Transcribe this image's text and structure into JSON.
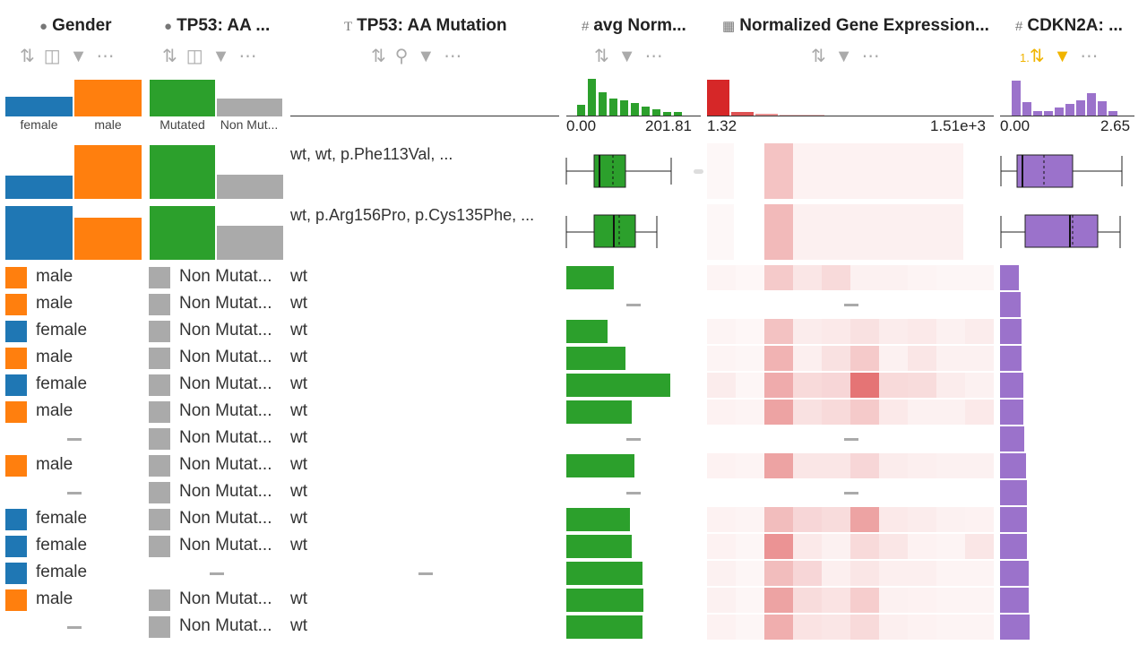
{
  "colors": {
    "female": "#1f77b4",
    "male": "#ff7f0e",
    "mutated": "#2ca02c",
    "non_mutated": "#aaaaaa",
    "avg_bar": "#2ca02c",
    "heat": "#d62728",
    "cdkn2a": "#9b72cb"
  },
  "columns": {
    "gender": {
      "title": "Gender",
      "icon": "categorical-icon",
      "hist_labels": [
        "female",
        "male"
      ]
    },
    "tp53_cat": {
      "title": "TP53: AA ...",
      "icon": "categorical-icon",
      "hist_labels": [
        "Mutated",
        "Non Mut..."
      ]
    },
    "tp53_text": {
      "title": "TP53: AA Mutation",
      "icon": "text-icon"
    },
    "avg_norm": {
      "title": "avg Norm...",
      "icon": "numeric-icon",
      "min": "0.00",
      "max": "201.81"
    },
    "norm_gene": {
      "title": "Normalized Gene Expression...",
      "icon": "matrix-icon",
      "min": "1.32",
      "max": "1.51e+3"
    },
    "cdkn2a": {
      "title": "CDKN2A: ...",
      "icon": "numeric-icon",
      "min": "0.00",
      "max": "2.65",
      "sort_badge": "1."
    }
  },
  "group_rows": [
    {
      "text": "wt, wt, p.Phe113Val, ...",
      "gender_female": 0.42,
      "gender_male": 1.0,
      "mut": 1.0,
      "nonmut": 0.45
    },
    {
      "text": "wt, p.Arg156Pro, p.Cys135Phe, ...",
      "gender_female": 1.0,
      "gender_male": 0.78,
      "mut": 1.0,
      "nonmut": 0.62
    }
  ],
  "rows": [
    {
      "gender": "male",
      "tp53": "Non Mutat...",
      "mutation": "wt",
      "avg": 0.45,
      "cdk": 0.14,
      "heat": [
        0.03,
        0.01,
        0.3,
        0.12,
        0.2,
        0.05,
        0.05,
        0.03,
        0.02,
        0.02
      ]
    },
    {
      "gender": "male",
      "tp53": "Non Mutat...",
      "mutation": "wt",
      "avg": null,
      "cdk": 0.15,
      "heat": null
    },
    {
      "gender": "female",
      "tp53": "Non Mutat...",
      "mutation": "wt",
      "avg": 0.39,
      "cdk": 0.16,
      "heat": [
        0.03,
        0.01,
        0.35,
        0.08,
        0.1,
        0.15,
        0.08,
        0.1,
        0.05,
        0.08
      ]
    },
    {
      "gender": "male",
      "tp53": "Non Mutat...",
      "mutation": "wt",
      "avg": 0.56,
      "cdk": 0.16,
      "heat": [
        0.03,
        0.02,
        0.45,
        0.06,
        0.15,
        0.3,
        0.05,
        0.12,
        0.05,
        0.05
      ]
    },
    {
      "gender": "female",
      "tp53": "Non Mutat...",
      "mutation": "wt",
      "avg": 0.98,
      "cdk": 0.17,
      "heat": [
        0.08,
        0.02,
        0.5,
        0.2,
        0.22,
        0.85,
        0.2,
        0.18,
        0.08,
        0.05
      ]
    },
    {
      "gender": "male",
      "tp53": "Non Mutat...",
      "mutation": "wt",
      "avg": 0.62,
      "cdk": 0.17,
      "heat": [
        0.04,
        0.03,
        0.55,
        0.15,
        0.2,
        0.3,
        0.1,
        0.05,
        0.05,
        0.1
      ]
    },
    {
      "gender": null,
      "tp53": "Non Mutat...",
      "mutation": "wt",
      "avg": null,
      "cdk": 0.18,
      "heat": null
    },
    {
      "gender": "male",
      "tp53": "Non Mutat...",
      "mutation": "wt",
      "avg": 0.64,
      "cdk": 0.19,
      "heat": [
        0.04,
        0.03,
        0.55,
        0.12,
        0.12,
        0.22,
        0.08,
        0.06,
        0.05,
        0.05
      ]
    },
    {
      "gender": null,
      "tp53": "Non Mutat...",
      "mutation": "wt",
      "avg": null,
      "cdk": 0.2,
      "heat": null
    },
    {
      "gender": "female",
      "tp53": "Non Mutat...",
      "mutation": "wt",
      "avg": 0.6,
      "cdk": 0.2,
      "heat": [
        0.04,
        0.03,
        0.38,
        0.22,
        0.18,
        0.55,
        0.1,
        0.08,
        0.05,
        0.04
      ]
    },
    {
      "gender": "female",
      "tp53": "Non Mutat...",
      "mutation": "wt",
      "avg": 0.62,
      "cdk": 0.2,
      "heat": [
        0.04,
        0.02,
        0.65,
        0.1,
        0.05,
        0.2,
        0.12,
        0.04,
        0.03,
        0.12
      ]
    },
    {
      "gender": "female",
      "tp53": null,
      "mutation": null,
      "avg": 0.72,
      "cdk": 0.21,
      "heat": [
        0.05,
        0.02,
        0.38,
        0.22,
        0.06,
        0.12,
        0.06,
        0.06,
        0.03,
        0.03
      ]
    },
    {
      "gender": "male",
      "tp53": "Non Mutat...",
      "mutation": "wt",
      "avg": 0.73,
      "cdk": 0.21,
      "heat": [
        0.05,
        0.02,
        0.55,
        0.18,
        0.14,
        0.28,
        0.05,
        0.04,
        0.03,
        0.03
      ]
    },
    {
      "gender": null,
      "tp53": "Non Mutat...",
      "mutation": "wt",
      "avg": 0.72,
      "cdk": 0.22,
      "heat": [
        0.04,
        0.02,
        0.48,
        0.14,
        0.12,
        0.2,
        0.06,
        0.04,
        0.03,
        0.03
      ]
    }
  ]
}
